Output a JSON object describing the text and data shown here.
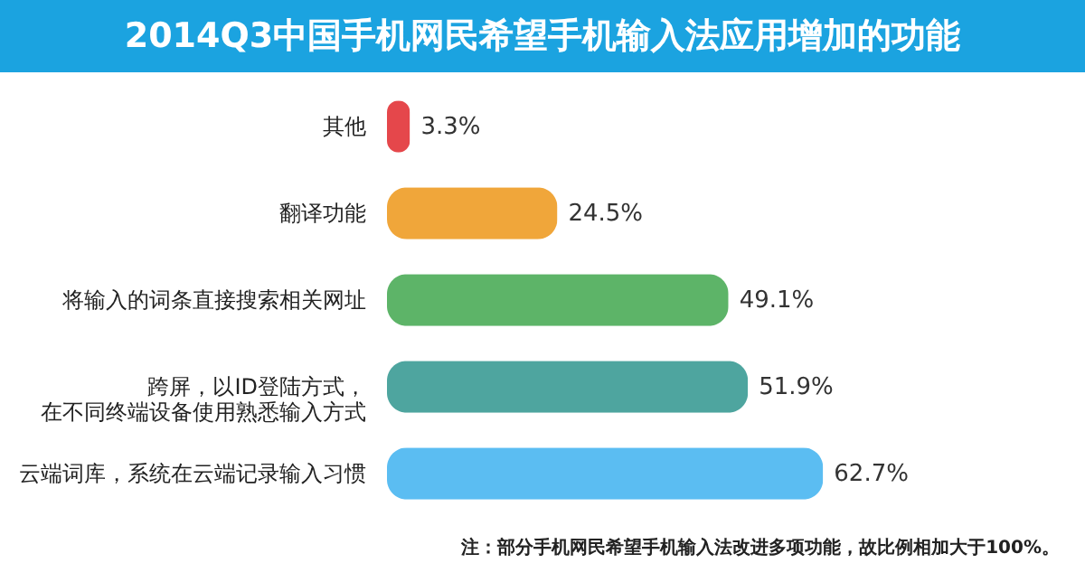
{
  "chart_data": {
    "type": "bar",
    "orientation": "horizontal",
    "title": "2014Q3中国手机网民希望手机输入法应用增加的功能",
    "categories": [
      "其他",
      "翻译功能",
      "将输入的词条直接搜索相关网址",
      "跨屏，以ID登陆方式，在不同终端设备使用熟悉输入方式",
      "云端词库，系统在云端记录输入习惯"
    ],
    "values": [
      3.3,
      24.5,
      49.1,
      51.9,
      62.7
    ],
    "value_labels": [
      "3.3%",
      "24.5%",
      "49.1%",
      "51.9%",
      "62.7%"
    ],
    "colors": [
      "#e5474b",
      "#f0a63a",
      "#5db468",
      "#4ea59f",
      "#5bbdf2"
    ],
    "annotations": [
      "注：部分手机网民希望手机输入法改进多项功能，故比例相加大于100%。"
    ]
  }
}
